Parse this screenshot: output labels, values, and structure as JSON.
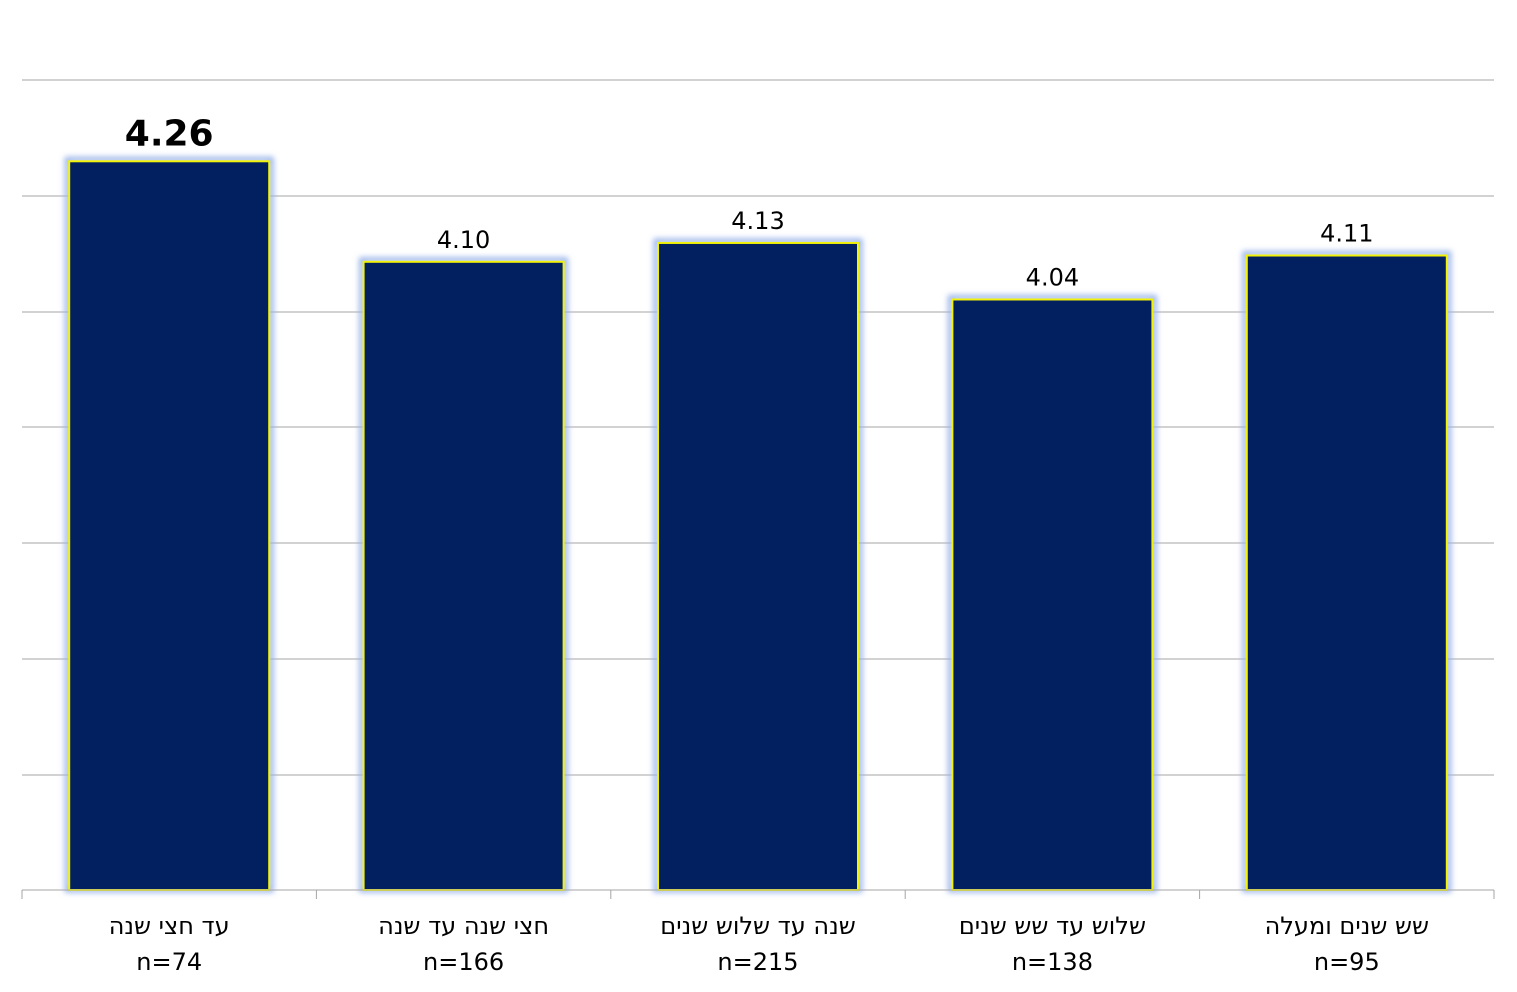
{
  "chart_data": {
    "type": "bar",
    "categories": [
      "עד חצי שנה",
      "חצי שנה עד שנה",
      "שנה עד שלוש שנים",
      "שלוש עד שש שנים",
      "שש שנים ומעלה"
    ],
    "sample_sizes": [
      "n=74",
      "n=166",
      "n=215",
      "n=138",
      "n=95"
    ],
    "values": [
      4.26,
      4.1,
      4.13,
      4.04,
      4.11
    ],
    "data_labels": [
      "4.26",
      "4.10",
      "4.13",
      "4.04",
      "4.11"
    ],
    "emphasized_index": 0,
    "grid": true,
    "colors": {
      "bar": "#022060",
      "bar_border": "#f2f20a",
      "glow": "#9ab4e8",
      "grid": "#a6a6a6",
      "axis": "#a6a6a6"
    }
  }
}
